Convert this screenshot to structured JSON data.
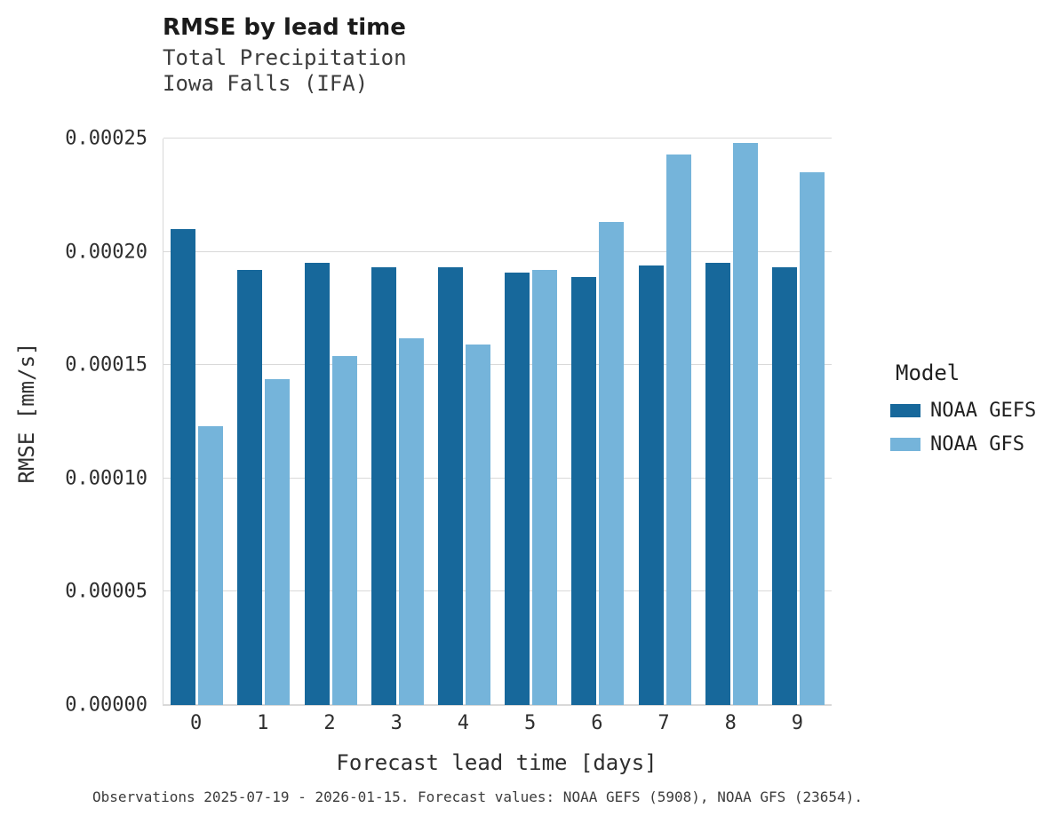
{
  "header": {
    "title": "RMSE by lead time",
    "subtitle1": "Total Precipitation",
    "subtitle2": "Iowa Falls (IFA)"
  },
  "footer": {
    "caption": "Observations 2025-07-19 - 2026-01-15. Forecast values: NOAA GEFS (5908), NOAA GFS (23654)."
  },
  "legend": {
    "title": "Model",
    "entries": [
      {
        "label": "NOAA GEFS",
        "color": "#17689b"
      },
      {
        "label": "NOAA GFS",
        "color": "#75b4da"
      }
    ]
  },
  "colors": {
    "gridline": "#d9d9d9",
    "text": "#2e2e2e",
    "series_dark": "#17689b",
    "series_light": "#75b4da"
  },
  "chart_data": {
    "type": "bar",
    "title": "RMSE by lead time",
    "subtitle": "Total Precipitation — Iowa Falls (IFA)",
    "xlabel": "Forecast lead time [days]",
    "ylabel": "RMSE [mm/s]",
    "categories": [
      "0",
      "1",
      "2",
      "3",
      "4",
      "5",
      "6",
      "7",
      "8",
      "9"
    ],
    "series": [
      {
        "name": "NOAA GEFS",
        "color": "#17689b",
        "values": [
          0.00021,
          0.000192,
          0.000195,
          0.000193,
          0.000193,
          0.000191,
          0.000189,
          0.000194,
          0.000195,
          0.000193
        ]
      },
      {
        "name": "NOAA GFS",
        "color": "#75b4da",
        "values": [
          0.000123,
          0.000144,
          0.000154,
          0.000162,
          0.000159,
          0.000192,
          0.000213,
          0.000243,
          0.000248,
          0.000235
        ]
      }
    ],
    "ylim": [
      0,
      0.00025
    ],
    "yticks": [
      0,
      5e-05,
      0.0001,
      0.00015,
      0.0002,
      0.00025
    ],
    "ytick_labels": [
      "0.00000",
      "0.00005",
      "0.00010",
      "0.00015",
      "0.00020",
      "0.00025"
    ],
    "grid": true,
    "legend_position": "right"
  }
}
